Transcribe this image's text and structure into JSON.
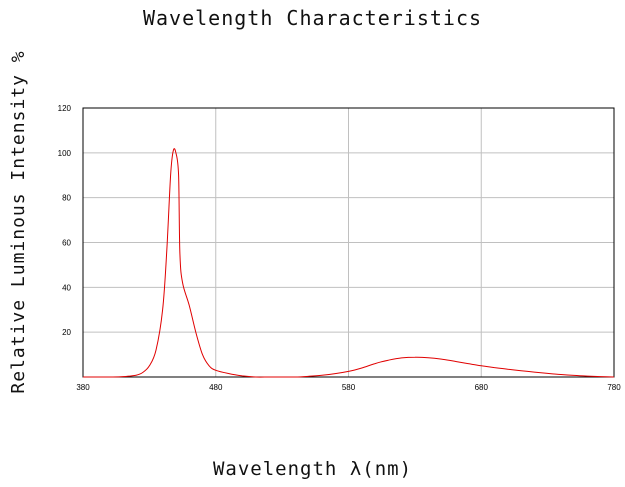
{
  "chart_data": {
    "type": "line",
    "title": "Wavelength Characteristics",
    "xlabel": "Wavelength  λ(nm)",
    "ylabel": "Relative Luminous Intensity %",
    "xlim": [
      380,
      780
    ],
    "ylim": [
      0,
      120
    ],
    "x_ticks": [
      "380",
      "480",
      "580",
      "680",
      "780"
    ],
    "y_ticks": [
      "20",
      "40",
      "60",
      "80",
      "100",
      "120"
    ],
    "grid": true,
    "line_color": "#e00000",
    "series": [
      {
        "x": [
          380,
          390,
          400,
          410,
          420,
          425,
          430,
          435,
          440,
          443,
          446,
          448,
          450,
          452,
          453,
          455,
          460,
          465,
          470,
          475,
          480,
          490,
          500,
          510,
          520,
          530,
          540,
          550,
          560,
          570,
          580,
          590,
          600,
          610,
          620,
          630,
          640,
          650,
          660,
          670,
          680,
          690,
          700,
          710,
          720,
          730,
          740,
          750,
          760,
          770,
          780
        ],
        "y": [
          0,
          0,
          0,
          0.2,
          0.8,
          2,
          5,
          12,
          30,
          55,
          90,
          101,
          100,
          90,
          55,
          42,
          32,
          20,
          10,
          5,
          3,
          1.5,
          0.5,
          0,
          0,
          0,
          0,
          0.3,
          0.8,
          1.5,
          2.5,
          4,
          6,
          7.5,
          8.5,
          8.8,
          8.6,
          8,
          7,
          6,
          5,
          4.2,
          3.5,
          2.8,
          2.2,
          1.6,
          1.1,
          0.7,
          0.4,
          0.2,
          0
        ]
      }
    ]
  }
}
